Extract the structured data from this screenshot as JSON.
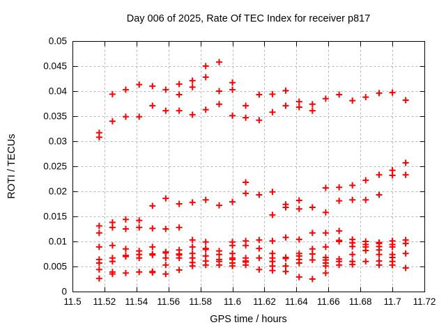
{
  "page": {
    "background": "#ffffff"
  },
  "colors": {
    "marker": "#ff0000",
    "grid": "#b5b5b5",
    "axis": "#000000",
    "text": "#000000",
    "background": "#ffffff"
  },
  "chart_data": {
    "type": "scatter",
    "title": "Day 006 of 2025, Rate Of TEC Index for receiver p817",
    "xlabel": "GPS time / hours",
    "ylabel": "ROTI / TECUs",
    "xlim": [
      11.5,
      11.72
    ],
    "ylim": [
      0,
      0.05
    ],
    "grid": true,
    "legend_position": "none",
    "marker": {
      "shape": "plus",
      "color": "#ff0000",
      "size": 9
    },
    "xticks": {
      "values": [
        11.5,
        11.52,
        11.54,
        11.56,
        11.58,
        11.6,
        11.62,
        11.64,
        11.66,
        11.68,
        11.7,
        11.72
      ],
      "labels": [
        "11.5",
        "11.52",
        "11.54",
        "11.56",
        "11.58",
        "11.6",
        "11.62",
        "11.64",
        "11.66",
        "11.68",
        "11.7",
        "11.72"
      ]
    },
    "yticks": {
      "values": [
        0,
        0.005,
        0.01,
        0.015,
        0.02,
        0.025,
        0.03,
        0.035,
        0.04,
        0.045,
        0.05
      ],
      "labels": [
        "0",
        "0.005",
        "0.01",
        "0.015",
        "0.02",
        "0.025",
        "0.03",
        "0.035",
        "0.04",
        "0.045",
        "0.05"
      ]
    },
    "series": [
      {
        "name": "ROTI",
        "epochs": [
          {
            "t": 11.5167,
            "values": [
              0.0317,
              0.0308,
              0.0131,
              0.0117,
              0.0089,
              0.0064,
              0.0057,
              0.0044,
              0.0026
            ]
          },
          {
            "t": 11.525,
            "values": [
              0.0394,
              0.034,
              0.0138,
              0.0128,
              0.0092,
              0.0067,
              0.006,
              0.0039,
              0.0035
            ]
          },
          {
            "t": 11.5333,
            "values": [
              0.0403,
              0.0349,
              0.0144,
              0.0125,
              0.0085,
              0.0072,
              0.007,
              0.0037
            ]
          },
          {
            "t": 11.5417,
            "values": [
              0.0413,
              0.0349,
              0.0142,
              0.0128,
              0.0081,
              0.0074,
              0.0067,
              0.0039
            ]
          },
          {
            "t": 11.55,
            "values": [
              0.041,
              0.0371,
              0.0171,
              0.0126,
              0.0089,
              0.0075,
              0.0073,
              0.004,
              0.0038
            ]
          },
          {
            "t": 11.5583,
            "values": [
              0.0403,
              0.0361,
              0.0186,
              0.0125,
              0.0079,
              0.0077,
              0.0067,
              0.0053,
              0.0035
            ]
          },
          {
            "t": 11.5667,
            "values": [
              0.0414,
              0.0393,
              0.0361,
              0.0175,
              0.0128,
              0.0083,
              0.0075,
              0.0073,
              0.0067,
              0.0043
            ]
          },
          {
            "t": 11.575,
            "values": [
              0.0421,
              0.0408,
              0.0353,
              0.0178,
              0.0103,
              0.0089,
              0.0076,
              0.0067,
              0.0058,
              0.0051
            ]
          },
          {
            "t": 11.5833,
            "values": [
              0.045,
              0.0428,
              0.0363,
              0.0183,
              0.0099,
              0.0086,
              0.0084,
              0.0071,
              0.0061,
              0.0053
            ]
          },
          {
            "t": 11.5917,
            "values": [
              0.0458,
              0.04,
              0.0374,
              0.0172,
              0.0081,
              0.0074,
              0.0064,
              0.006,
              0.0053
            ]
          },
          {
            "t": 11.6,
            "values": [
              0.0417,
              0.0403,
              0.0351,
              0.0179,
              0.0099,
              0.0092,
              0.0076,
              0.0067,
              0.0064,
              0.0057,
              0.0051
            ]
          },
          {
            "t": 11.6083,
            "values": [
              0.0371,
              0.0347,
              0.0218,
              0.0196,
              0.0101,
              0.0092,
              0.0067,
              0.0061,
              0.0059,
              0.0053
            ]
          },
          {
            "t": 11.6167,
            "values": [
              0.0393,
              0.0342,
              0.0193,
              0.0103,
              0.0086,
              0.0067,
              0.0044
            ]
          },
          {
            "t": 11.625,
            "values": [
              0.0394,
              0.0358,
              0.0199,
              0.0153,
              0.0101,
              0.0076,
              0.0067,
              0.006,
              0.0051,
              0.0042
            ]
          },
          {
            "t": 11.6333,
            "values": [
              0.0401,
              0.0371,
              0.0174,
              0.0168,
              0.0108,
              0.0068,
              0.0066,
              0.0051,
              0.004
            ]
          },
          {
            "t": 11.6417,
            "values": [
              0.0379,
              0.0368,
              0.0182,
              0.0165,
              0.0104,
              0.0076,
              0.0071,
              0.0064,
              0.0057,
              0.0029
            ]
          },
          {
            "t": 11.65,
            "values": [
              0.0374,
              0.0361,
              0.0168,
              0.0117,
              0.0085,
              0.0075,
              0.0063,
              0.0025
            ]
          },
          {
            "t": 11.6583,
            "values": [
              0.0385,
              0.0207,
              0.0158,
              0.0117,
              0.0089,
              0.0068,
              0.0063,
              0.0057,
              0.0051,
              0.0037
            ]
          },
          {
            "t": 11.6667,
            "values": [
              0.0393,
              0.0208,
              0.0181,
              0.0121,
              0.0102,
              0.01,
              0.0065,
              0.006,
              0.0053
            ]
          },
          {
            "t": 11.675,
            "values": [
              0.0381,
              0.0212,
              0.0183,
              0.0104,
              0.0097,
              0.009,
              0.0074,
              0.006,
              0.0054
            ]
          },
          {
            "t": 11.6833,
            "values": [
              0.0388,
              0.0222,
              0.0183,
              0.01,
              0.0094,
              0.0089,
              0.0082,
              0.006
            ]
          },
          {
            "t": 11.6917,
            "values": [
              0.0396,
              0.0233,
              0.0193,
              0.0098,
              0.0096,
              0.009,
              0.0083,
              0.0074,
              0.0061,
              0.0053
            ]
          },
          {
            "t": 11.7,
            "values": [
              0.0397,
              0.0242,
              0.0232,
              0.0101,
              0.0094,
              0.0089,
              0.0074,
              0.0068,
              0.006,
              0.0053
            ]
          },
          {
            "t": 11.7083,
            "values": [
              0.0382,
              0.0257,
              0.0233,
              0.0103,
              0.0096,
              0.0076,
              0.0047
            ]
          }
        ]
      }
    ]
  }
}
